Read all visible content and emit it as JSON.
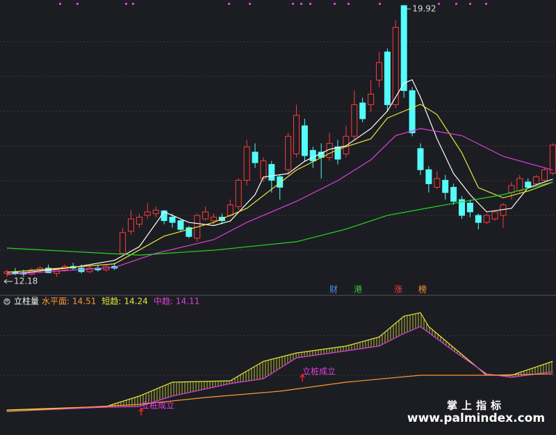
{
  "chart_data": [
    {
      "type": "candlestick",
      "up_color": "#ff3b3b",
      "down_color": "#54fcfc",
      "ylim": [
        12.17,
        19.92
      ],
      "max_price": 19.92,
      "min_price": 12.18,
      "candles": [
        [
          12.3,
          12.4,
          12.2,
          12.35
        ],
        [
          12.35,
          12.45,
          12.25,
          12.3
        ],
        [
          12.3,
          12.4,
          12.2,
          12.28
        ],
        [
          12.28,
          12.45,
          12.25,
          12.4
        ],
        [
          12.4,
          12.5,
          12.3,
          12.45
        ],
        [
          12.45,
          12.55,
          12.3,
          12.32
        ],
        [
          12.3,
          12.45,
          12.2,
          12.4
        ],
        [
          12.4,
          12.55,
          12.35,
          12.5
        ],
        [
          12.5,
          12.6,
          12.4,
          12.45
        ],
        [
          12.45,
          12.55,
          12.3,
          12.35
        ],
        [
          12.35,
          12.5,
          12.3,
          12.45
        ],
        [
          12.45,
          12.55,
          12.35,
          12.4
        ],
        [
          12.4,
          12.55,
          12.35,
          12.5
        ],
        [
          12.5,
          12.6,
          12.4,
          12.45
        ],
        [
          12.87,
          13.6,
          12.85,
          13.46
        ],
        [
          13.5,
          14.1,
          13.4,
          13.85
        ],
        [
          13.7,
          14.0,
          13.6,
          13.9
        ],
        [
          13.95,
          14.3,
          13.85,
          14.05
        ],
        [
          14.0,
          14.2,
          13.9,
          14.1
        ],
        [
          14.08,
          14.1,
          13.7,
          13.8
        ],
        [
          13.9,
          14.0,
          13.6,
          13.75
        ],
        [
          13.8,
          13.85,
          13.5,
          13.55
        ],
        [
          13.6,
          13.65,
          13.3,
          13.35
        ],
        [
          13.3,
          14.0,
          13.2,
          13.95
        ],
        [
          13.85,
          14.2,
          13.8,
          14.05
        ],
        [
          13.8,
          14.0,
          13.7,
          13.9
        ],
        [
          13.9,
          14.0,
          13.7,
          13.8
        ],
        [
          13.95,
          14.4,
          13.9,
          14.25
        ],
        [
          14.2,
          15.0,
          14.1,
          14.95
        ],
        [
          14.95,
          16.1,
          14.8,
          15.9
        ],
        [
          15.75,
          16.0,
          15.3,
          15.45
        ],
        [
          15.0,
          15.6,
          14.9,
          15.5
        ],
        [
          15.4,
          15.5,
          14.6,
          14.95
        ],
        [
          15.05,
          15.1,
          14.4,
          14.75
        ],
        [
          15.25,
          16.3,
          15.1,
          16.2
        ],
        [
          15.7,
          17.1,
          15.6,
          16.8
        ],
        [
          16.5,
          16.7,
          15.5,
          15.65
        ],
        [
          15.8,
          15.9,
          15.3,
          15.5
        ],
        [
          15.75,
          16.0,
          15.0,
          15.6
        ],
        [
          15.6,
          16.3,
          15.5,
          16.0
        ],
        [
          15.9,
          16.1,
          15.4,
          15.55
        ],
        [
          15.7,
          16.5,
          15.6,
          16.2
        ],
        [
          16.2,
          17.5,
          16.1,
          17.1
        ],
        [
          17.15,
          17.3,
          16.6,
          16.7
        ],
        [
          17.1,
          17.8,
          16.9,
          17.4
        ],
        [
          17.8,
          18.6,
          17.6,
          18.3
        ],
        [
          18.6,
          18.7,
          16.9,
          17.1
        ],
        [
          17.1,
          19.5,
          17.0,
          19.3
        ],
        [
          19.92,
          19.92,
          17.3,
          17.5
        ],
        [
          17.5,
          17.6,
          16.2,
          16.3
        ],
        [
          15.85,
          16.0,
          15.1,
          15.25
        ],
        [
          15.25,
          15.35,
          14.6,
          14.85
        ],
        [
          14.75,
          15.2,
          14.7,
          15.0
        ],
        [
          14.95,
          15.1,
          14.4,
          14.6
        ],
        [
          14.75,
          14.85,
          14.25,
          14.35
        ],
        [
          14.4,
          14.5,
          13.85,
          13.95
        ],
        [
          14.3,
          14.4,
          13.9,
          14.05
        ],
        [
          13.95,
          14.0,
          13.55,
          13.75
        ],
        [
          13.75,
          14.0,
          13.7,
          13.95
        ],
        [
          13.85,
          14.1,
          13.8,
          14.05
        ],
        [
          13.95,
          14.3,
          13.6,
          14.25
        ],
        [
          14.6,
          14.9,
          14.4,
          14.8
        ],
        [
          14.65,
          15.1,
          14.6,
          15.0
        ],
        [
          14.9,
          15.0,
          14.7,
          14.75
        ],
        [
          14.85,
          15.1,
          14.8,
          15.05
        ],
        [
          14.95,
          15.3,
          14.9,
          15.25
        ],
        [
          15.15,
          16.0,
          15.1,
          15.95
        ]
      ],
      "series": [
        {
          "color": "#ffffff",
          "x": [
            0,
            8,
            13,
            16,
            19,
            22,
            25,
            27,
            30,
            31,
            34,
            36,
            39,
            41,
            44,
            46,
            48,
            49,
            50,
            52,
            54,
            56,
            58,
            61,
            63,
            66
          ],
          "values": [
            12.27,
            12.47,
            12.67,
            13.06,
            14.05,
            13.75,
            13.66,
            13.79,
            14.54,
            15.04,
            15.14,
            15.49,
            15.83,
            15.93,
            16.42,
            16.92,
            17.71,
            17.81,
            17.31,
            16.13,
            15.14,
            14.54,
            14.05,
            14.15,
            14.74,
            14.98
          ]
        },
        {
          "color": "#e8e83a",
          "x": [
            0,
            13,
            19,
            25,
            29,
            35,
            40,
            44,
            46,
            50,
            52,
            55,
            57,
            60,
            63,
            66
          ],
          "values": [
            12.33,
            12.57,
            13.36,
            13.75,
            14.15,
            15.24,
            15.83,
            16.13,
            16.72,
            17.11,
            16.82,
            15.73,
            14.74,
            14.45,
            14.64,
            14.9
          ]
        },
        {
          "color": "#e040e0",
          "x": [
            0,
            13,
            18,
            25,
            29,
            35,
            40,
            44,
            47,
            50,
            55,
            60,
            66
          ],
          "values": [
            12.27,
            12.47,
            12.87,
            13.26,
            13.75,
            14.35,
            14.94,
            15.53,
            16.22,
            16.42,
            16.22,
            15.63,
            15.24
          ]
        },
        {
          "color": "#22dd22",
          "x": [
            0,
            8,
            16,
            25,
            35,
            41,
            46,
            53,
            60,
            66
          ],
          "values": [
            13.02,
            12.92,
            12.82,
            12.96,
            13.2,
            13.56,
            13.95,
            14.25,
            14.54,
            14.9
          ]
        }
      ],
      "tags": [
        {
          "text": "财",
          "color": "#4a90ff"
        },
        {
          "text": "港",
          "color": "#33cc33"
        },
        {
          "text": "涨",
          "color": "#ff3b3b"
        },
        {
          "text": "榜",
          "color": "#ff9933"
        }
      ]
    },
    {
      "type": "line",
      "title": "立柱量",
      "ylim": [
        0,
        160
      ],
      "legend": [
        {
          "label": "水平面:",
          "value": 14.51,
          "color": "#ff9933"
        },
        {
          "label": "短趋:",
          "value": 14.24,
          "color": "#e8e83a"
        },
        {
          "label": "中趋:",
          "value": 14.11,
          "color": "#e040e0"
        }
      ],
      "series": [
        {
          "color": "#e8e83a",
          "x": [
            0,
            12,
            16,
            20,
            27,
            31,
            35,
            41,
            45,
            48,
            50,
            51,
            55,
            58,
            61,
            66
          ],
          "values": [
            10,
            15,
            30,
            50,
            52,
            80,
            92,
            102,
            115,
            145,
            150,
            130,
            90,
            60,
            60,
            80
          ]
        },
        {
          "color": "#e040e0",
          "x": [
            0,
            12,
            16,
            20,
            27,
            31,
            35,
            41,
            45,
            48,
            50,
            54,
            58,
            61,
            66
          ],
          "values": [
            8,
            14,
            15,
            30,
            48,
            55,
            85,
            95,
            102,
            120,
            130,
            95,
            62,
            57,
            65
          ]
        },
        {
          "color": "#ff9933",
          "x": [
            0,
            16,
            24,
            33,
            41,
            50,
            58,
            66
          ],
          "values": [
            8,
            18,
            28,
            37,
            50,
            60,
            60,
            62
          ]
        }
      ],
      "annotations": [
        "立桩成立",
        "立桩成立"
      ]
    }
  ],
  "footer": {
    "brand": "掌上指标",
    "url": "www.palmindex.com"
  }
}
